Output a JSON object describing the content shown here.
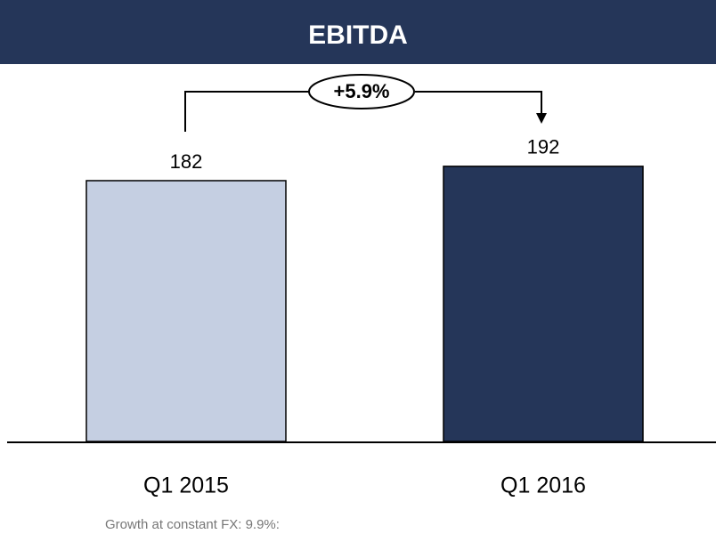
{
  "chart_data": {
    "type": "bar",
    "title": "EBITDA",
    "categories": [
      "Q1 2015",
      "Q1 2016"
    ],
    "values": [
      182,
      192
    ],
    "colors": [
      "#c5cfe2",
      "#253659"
    ],
    "annotation": "+5.9%",
    "note": "Growth at constant FX: 9.9%:"
  }
}
